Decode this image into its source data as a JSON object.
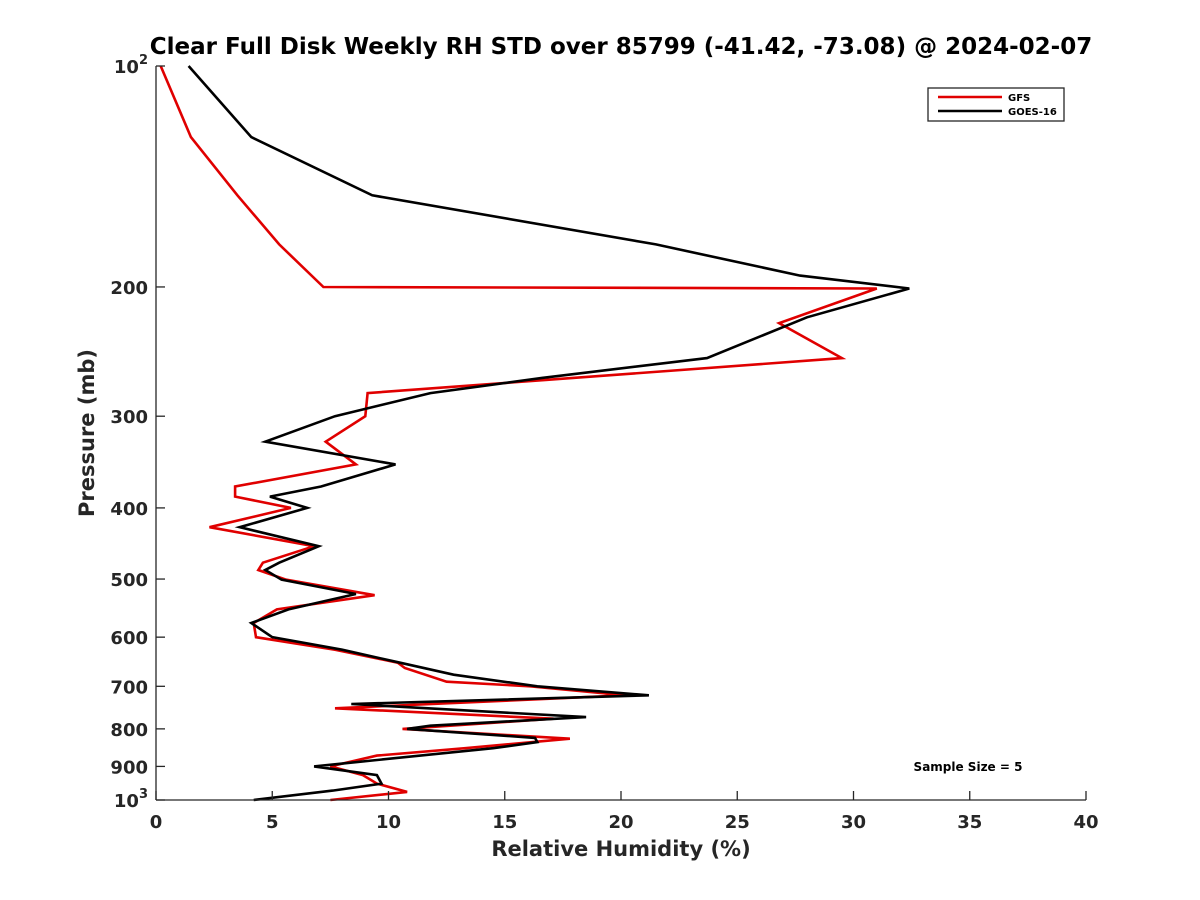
{
  "chart_data": {
    "type": "line",
    "title": "Clear Full Disk Weekly RH STD over 85799 (-41.42, -73.08) @ 2024-02-07",
    "xlabel": "Relative Humidity (%)",
    "ylabel": "Pressure (mb)",
    "xlim": [
      0,
      40
    ],
    "ylim": [
      100,
      1000
    ],
    "y_scale": "log",
    "y_reversed": true,
    "grid": false,
    "legend_position": "top-right",
    "x_ticks": [
      "0",
      "5",
      "10",
      "15",
      "20",
      "25",
      "30",
      "35",
      "40"
    ],
    "y_ticks": [
      {
        "value": 100,
        "base": "10",
        "exp": "2"
      },
      {
        "value": 200,
        "base": "200",
        "exp": ""
      },
      {
        "value": 300,
        "base": "300",
        "exp": ""
      },
      {
        "value": 400,
        "base": "400",
        "exp": ""
      },
      {
        "value": 500,
        "base": "500",
        "exp": ""
      },
      {
        "value": 600,
        "base": "600",
        "exp": ""
      },
      {
        "value": 700,
        "base": "700",
        "exp": ""
      },
      {
        "value": 800,
        "base": "800",
        "exp": ""
      },
      {
        "value": 900,
        "base": "900",
        "exp": ""
      },
      {
        "value": 1000,
        "base": "10",
        "exp": "3"
      }
    ],
    "series": [
      {
        "name": "GFS",
        "color": "#e00000",
        "points": [
          [
            0.2,
            100
          ],
          [
            1.5,
            125
          ],
          [
            3.5,
            150
          ],
          [
            5.3,
            175
          ],
          [
            7.2,
            200
          ],
          [
            31.0,
            201
          ],
          [
            26.8,
            224
          ],
          [
            29.5,
            250
          ],
          [
            9.1,
            279
          ],
          [
            9.0,
            300
          ],
          [
            7.3,
            325
          ],
          [
            8.6,
            349
          ],
          [
            3.4,
            374
          ],
          [
            3.4,
            386
          ],
          [
            5.8,
            400
          ],
          [
            2.3,
            425
          ],
          [
            6.8,
            451
          ],
          [
            4.6,
            475
          ],
          [
            4.4,
            486
          ],
          [
            5.6,
            501
          ],
          [
            9.4,
            526
          ],
          [
            5.2,
            550
          ],
          [
            4.2,
            574
          ],
          [
            4.3,
            600
          ],
          [
            7.7,
            624
          ],
          [
            10.4,
            650
          ],
          [
            10.7,
            661
          ],
          [
            12.5,
            690
          ],
          [
            16.1,
            700
          ],
          [
            20.2,
            720
          ],
          [
            7.7,
            750
          ],
          [
            17.1,
            775
          ],
          [
            10.6,
            800
          ],
          [
            17.8,
            825
          ],
          [
            13.3,
            850
          ],
          [
            9.5,
            870
          ],
          [
            7.5,
            900
          ],
          [
            8.9,
            925
          ],
          [
            9.5,
            950
          ],
          [
            10.8,
            975
          ],
          [
            7.5,
            1000
          ]
        ]
      },
      {
        "name": "GOES-16",
        "color": "#000000",
        "points": [
          [
            1.4,
            100
          ],
          [
            4.1,
            125
          ],
          [
            9.3,
            150
          ],
          [
            21.5,
            175
          ],
          [
            27.7,
            193
          ],
          [
            32.4,
            201
          ],
          [
            28.0,
            220
          ],
          [
            23.7,
            250
          ],
          [
            16.6,
            266
          ],
          [
            11.8,
            279
          ],
          [
            7.7,
            300
          ],
          [
            4.7,
            325
          ],
          [
            10.3,
            349
          ],
          [
            7.1,
            374
          ],
          [
            4.9,
            386
          ],
          [
            6.5,
            400
          ],
          [
            3.6,
            425
          ],
          [
            7.0,
            451
          ],
          [
            5.3,
            475
          ],
          [
            4.7,
            486
          ],
          [
            5.4,
            501
          ],
          [
            8.6,
            524
          ],
          [
            5.7,
            550
          ],
          [
            4.1,
            574
          ],
          [
            5.0,
            600
          ],
          [
            8.0,
            624
          ],
          [
            10.4,
            649
          ],
          [
            12.8,
            675
          ],
          [
            16.4,
            700
          ],
          [
            21.2,
            720
          ],
          [
            8.4,
            740
          ],
          [
            18.5,
            771
          ],
          [
            11.8,
            792
          ],
          [
            10.8,
            800
          ],
          [
            16.3,
            823
          ],
          [
            16.4,
            834
          ],
          [
            14.5,
            850
          ],
          [
            6.8,
            900
          ],
          [
            9.5,
            925
          ],
          [
            9.7,
            950
          ],
          [
            7.6,
            971
          ],
          [
            4.2,
            1000
          ]
        ]
      }
    ],
    "annotation": "Sample Size = 5"
  }
}
